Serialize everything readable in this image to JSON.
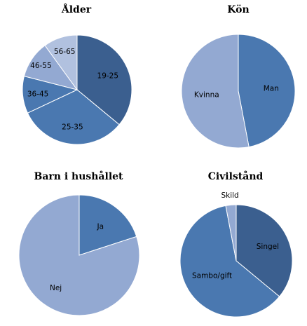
{
  "colors": {
    "dark": "#3b5f8f",
    "mid": "#4a78b0",
    "light": "#93a9d2",
    "lighter": "#b1c1df",
    "stroke": "#ffffff"
  },
  "chart_data": [
    {
      "type": "pie",
      "title": "Ålder",
      "slices": [
        {
          "label": "19-25",
          "value": 36,
          "color": "dark"
        },
        {
          "label": "25-35",
          "value": 32,
          "color": "mid"
        },
        {
          "label": "36-45",
          "value": 11,
          "color": "mid"
        },
        {
          "label": "46-55",
          "value": 11,
          "color": "light"
        },
        {
          "label": "56-65",
          "value": 10,
          "color": "lighter"
        }
      ]
    },
    {
      "type": "pie",
      "title": "Kön",
      "slices": [
        {
          "label": "Man",
          "value": 47,
          "color": "mid"
        },
        {
          "label": "Kvinna",
          "value": 53,
          "color": "light"
        }
      ]
    },
    {
      "type": "pie",
      "title": "Barn i hushållet",
      "slices": [
        {
          "label": "Ja",
          "value": 20,
          "color": "mid"
        },
        {
          "label": "Nej",
          "value": 80,
          "color": "light"
        }
      ]
    },
    {
      "type": "pie",
      "title": "Civilstånd",
      "slices": [
        {
          "label": "Singel",
          "value": 36,
          "color": "dark"
        },
        {
          "label": "Sambo/gift",
          "value": 61,
          "color": "mid"
        },
        {
          "label": "Skild",
          "value": 3,
          "color": "light"
        }
      ]
    }
  ]
}
